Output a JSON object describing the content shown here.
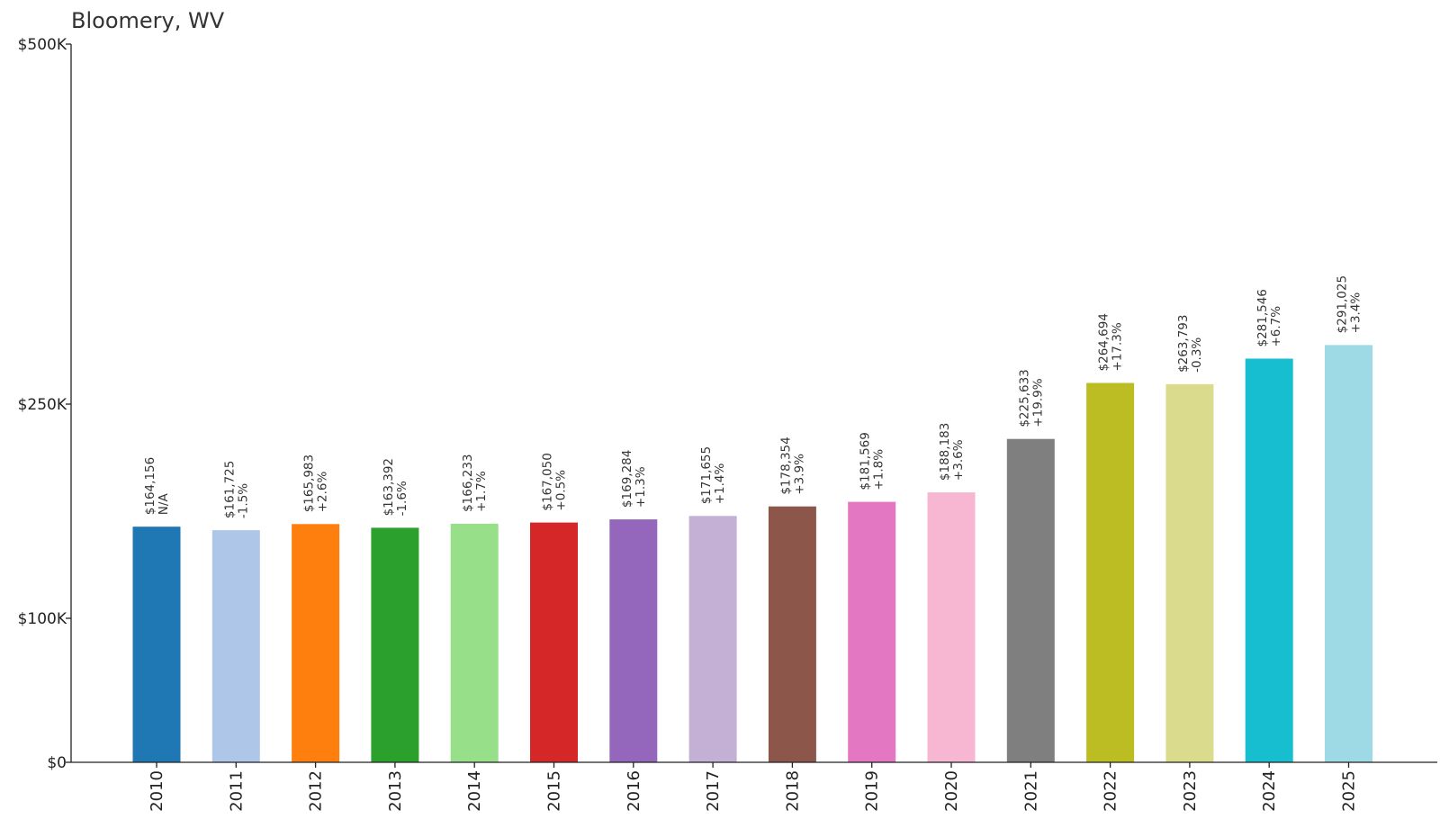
{
  "chart_data": {
    "type": "bar",
    "title": "Bloomery, WV",
    "xlabel": "",
    "ylabel": "",
    "ytick_values": [
      0,
      100000,
      250000,
      500000
    ],
    "ytick_labels": [
      "$0",
      "$100K",
      "$250K",
      "$500K"
    ],
    "ylim": [
      0,
      500000
    ],
    "grid": false,
    "categories": [
      "2010",
      "2011",
      "2012",
      "2013",
      "2014",
      "2015",
      "2016",
      "2017",
      "2018",
      "2019",
      "2020",
      "2021",
      "2022",
      "2023",
      "2024",
      "2025"
    ],
    "values": [
      164156,
      161725,
      165983,
      163392,
      166233,
      167050,
      169284,
      171655,
      178354,
      181569,
      188183,
      225633,
      264694,
      263793,
      281546,
      291025
    ],
    "value_labels": [
      "$164,156",
      "$161,725",
      "$165,983",
      "$163,392",
      "$166,233",
      "$167,050",
      "$169,284",
      "$171,655",
      "$178,354",
      "$181,569",
      "$188,183",
      "$225,633",
      "$264,694",
      "$263,793",
      "$281,546",
      "$291,025"
    ],
    "change_labels": [
      "N/A",
      "-1.5%",
      "+2.6%",
      "-1.6%",
      "+1.7%",
      "+0.5%",
      "+1.3%",
      "+1.4%",
      "+3.9%",
      "+1.8%",
      "+3.6%",
      "+19.9%",
      "+17.3%",
      "-0.3%",
      "+6.7%",
      "+3.4%"
    ],
    "colors": [
      "#1f77b4",
      "#aec7e8",
      "#ff7f0e",
      "#2ca02c",
      "#98df8a",
      "#d62728",
      "#9467bd",
      "#c5b0d5",
      "#8c564b",
      "#e377c2",
      "#f7b6d2",
      "#7f7f7f",
      "#bcbd22",
      "#dbdb8d",
      "#17becf",
      "#9edae5"
    ]
  }
}
